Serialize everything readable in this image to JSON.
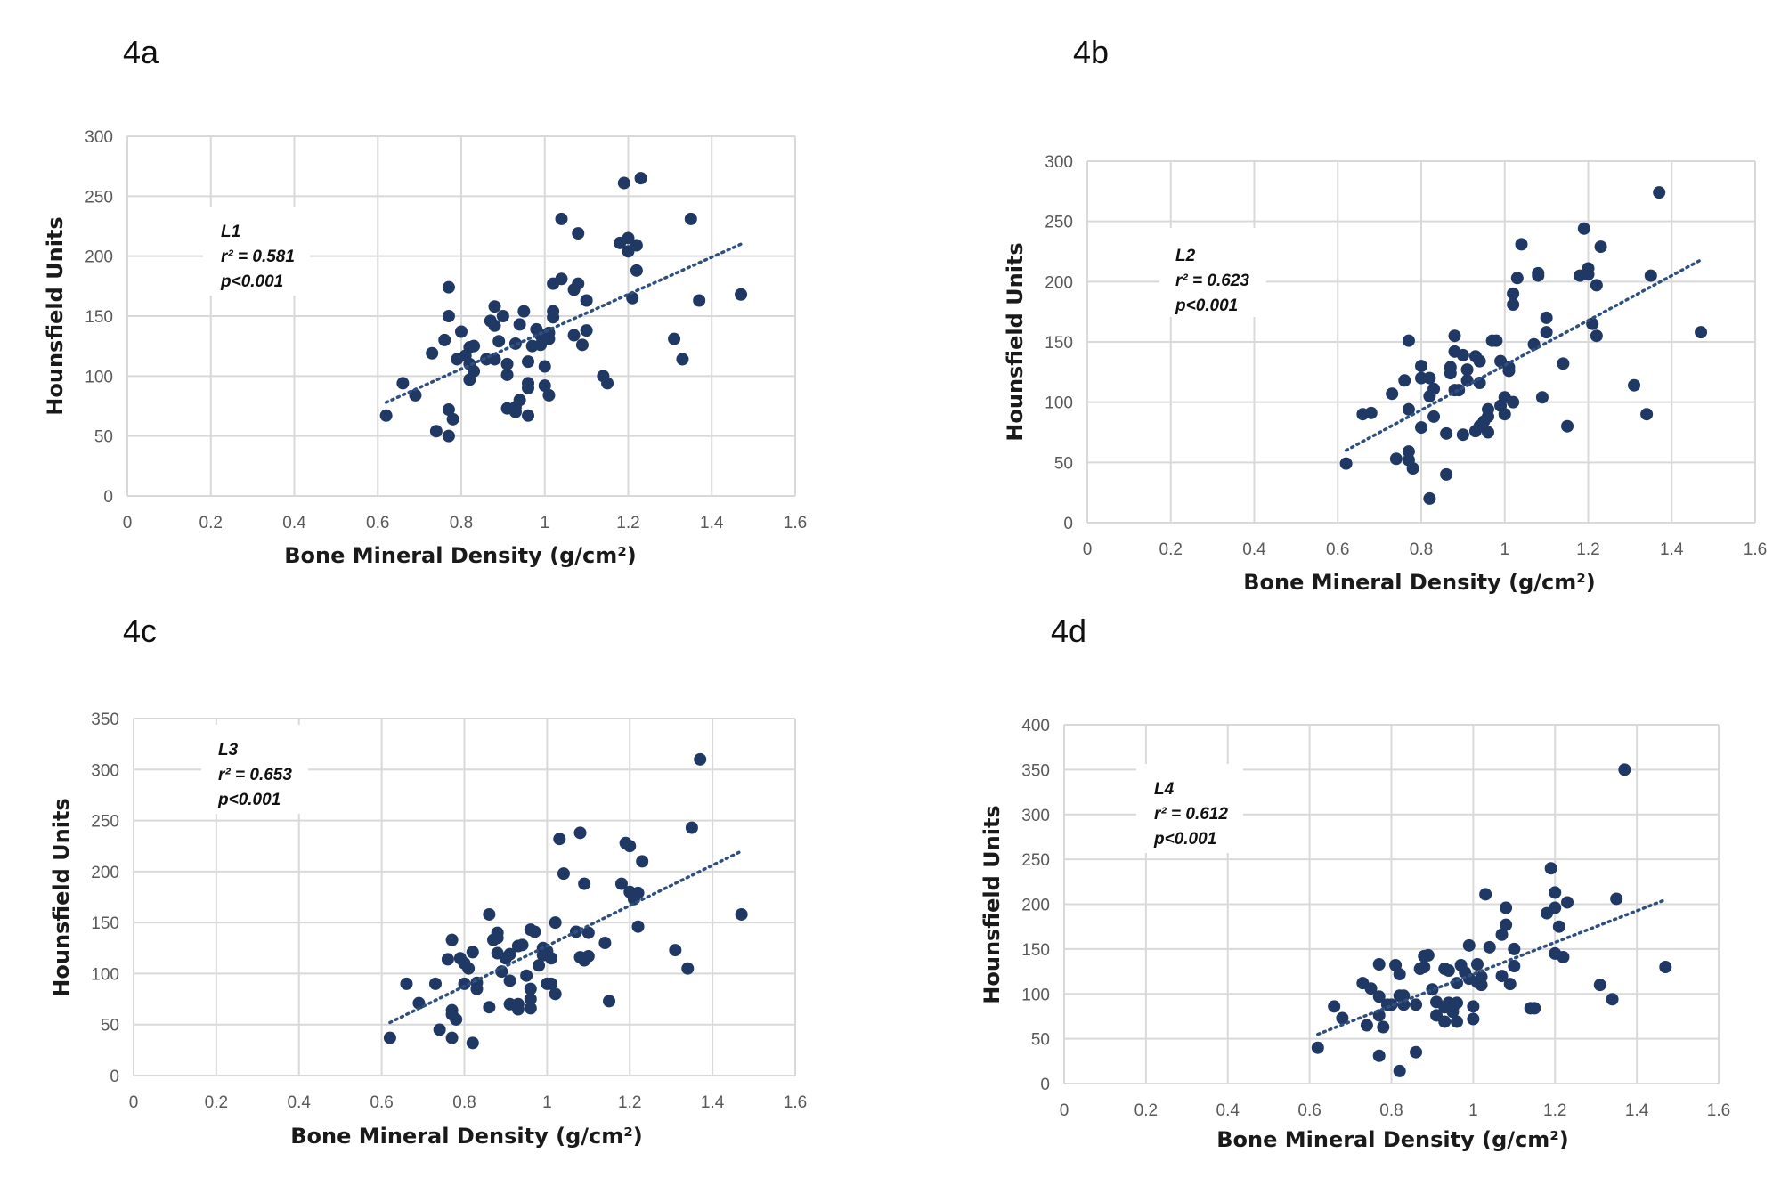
{
  "colors": {
    "marker": "#1f3864",
    "trendline": "#2e4f7f",
    "grid": "#d9d9d9"
  },
  "chart_data": [
    {
      "panel": "4a",
      "type": "scatter",
      "title": "",
      "xlabel": "Bone Mineral Density (g/cm²)",
      "ylabel": "Hounsfield Units",
      "xlim": [
        0,
        1.6
      ],
      "ylim": [
        0,
        300
      ],
      "xticks": [
        "0",
        "0.2",
        "0.4",
        "0.6",
        "0.8",
        "1",
        "1.2",
        "1.4",
        "1.6"
      ],
      "yticks": [
        "0",
        "50",
        "100",
        "150",
        "200",
        "250",
        "300"
      ],
      "grid": true,
      "annotation": {
        "level": "L1",
        "r2": "r² = 0.581",
        "p": "p<0.001"
      },
      "trendline": {
        "x": [
          0.62,
          1.47
        ],
        "y": [
          78,
          210
        ]
      },
      "points": [
        [
          0.62,
          67
        ],
        [
          0.66,
          94
        ],
        [
          0.69,
          84
        ],
        [
          0.73,
          119
        ],
        [
          0.74,
          54
        ],
        [
          0.76,
          130
        ],
        [
          0.77,
          150
        ],
        [
          0.77,
          174
        ],
        [
          0.77,
          72
        ],
        [
          0.77,
          50
        ],
        [
          0.78,
          64
        ],
        [
          0.79,
          114
        ],
        [
          0.8,
          137
        ],
        [
          0.81,
          117
        ],
        [
          0.82,
          124
        ],
        [
          0.82,
          110
        ],
        [
          0.83,
          125
        ],
        [
          0.83,
          104
        ],
        [
          0.82,
          97
        ],
        [
          0.86,
          114
        ],
        [
          0.87,
          146
        ],
        [
          0.88,
          158
        ],
        [
          0.88,
          142
        ],
        [
          0.88,
          114
        ],
        [
          0.89,
          129
        ],
        [
          0.9,
          150
        ],
        [
          0.91,
          110
        ],
        [
          0.91,
          101
        ],
        [
          0.91,
          73
        ],
        [
          0.93,
          74
        ],
        [
          0.93,
          70
        ],
        [
          0.93,
          127
        ],
        [
          0.94,
          80
        ],
        [
          0.94,
          143
        ],
        [
          0.95,
          154
        ],
        [
          0.96,
          112
        ],
        [
          0.96,
          94
        ],
        [
          0.96,
          90
        ],
        [
          0.96,
          67
        ],
        [
          0.97,
          125
        ],
        [
          0.98,
          139
        ],
        [
          0.99,
          126
        ],
        [
          0.99,
          134
        ],
        [
          1.0,
          108
        ],
        [
          1.0,
          92
        ],
        [
          1.01,
          84
        ],
        [
          1.01,
          131
        ],
        [
          1.01,
          136
        ],
        [
          1.02,
          149
        ],
        [
          1.02,
          154
        ],
        [
          1.02,
          177
        ],
        [
          1.04,
          181
        ],
        [
          1.04,
          231
        ],
        [
          1.07,
          134
        ],
        [
          1.07,
          172
        ],
        [
          1.08,
          177
        ],
        [
          1.08,
          219
        ],
        [
          1.09,
          126
        ],
        [
          1.1,
          163
        ],
        [
          1.1,
          138
        ],
        [
          1.14,
          100
        ],
        [
          1.15,
          94
        ],
        [
          1.18,
          211
        ],
        [
          1.19,
          261
        ],
        [
          1.2,
          215
        ],
        [
          1.2,
          204
        ],
        [
          1.21,
          165
        ],
        [
          1.22,
          209
        ],
        [
          1.22,
          188
        ],
        [
          1.23,
          265
        ],
        [
          1.31,
          131
        ],
        [
          1.33,
          114
        ],
        [
          1.35,
          231
        ],
        [
          1.37,
          163
        ],
        [
          1.47,
          168
        ]
      ]
    },
    {
      "panel": "4b",
      "type": "scatter",
      "title": "",
      "xlabel": "Bone Mineral Density (g/cm²)",
      "ylabel": "Hounsfield Units",
      "xlim": [
        0,
        1.6
      ],
      "ylim": [
        0,
        300
      ],
      "xticks": [
        "0",
        "0.2",
        "0.4",
        "0.6",
        "0.8",
        "1",
        "1.2",
        "1.4",
        "1.6"
      ],
      "yticks": [
        "0",
        "50",
        "100",
        "150",
        "200",
        "250",
        "300"
      ],
      "grid": true,
      "annotation": {
        "level": "L2",
        "r2": "r² = 0.623",
        "p": "p<0.001"
      },
      "trendline": {
        "x": [
          0.62,
          1.47
        ],
        "y": [
          60,
          218
        ]
      },
      "points": [
        [
          0.62,
          49
        ],
        [
          0.66,
          90
        ],
        [
          0.68,
          91
        ],
        [
          0.73,
          107
        ],
        [
          0.74,
          53
        ],
        [
          0.76,
          118
        ],
        [
          0.77,
          151
        ],
        [
          0.77,
          94
        ],
        [
          0.77,
          59
        ],
        [
          0.77,
          52
        ],
        [
          0.78,
          45
        ],
        [
          0.8,
          79
        ],
        [
          0.8,
          130
        ],
        [
          0.8,
          120
        ],
        [
          0.82,
          120
        ],
        [
          0.82,
          105
        ],
        [
          0.82,
          20
        ],
        [
          0.83,
          111
        ],
        [
          0.83,
          88
        ],
        [
          0.86,
          74
        ],
        [
          0.86,
          40
        ],
        [
          0.87,
          129
        ],
        [
          0.87,
          124
        ],
        [
          0.88,
          155
        ],
        [
          0.88,
          142
        ],
        [
          0.88,
          110
        ],
        [
          0.89,
          110
        ],
        [
          0.9,
          139
        ],
        [
          0.9,
          73
        ],
        [
          0.91,
          127
        ],
        [
          0.91,
          118
        ],
        [
          0.93,
          138
        ],
        [
          0.93,
          76
        ],
        [
          0.94,
          134
        ],
        [
          0.94,
          116
        ],
        [
          0.94,
          80
        ],
        [
          0.95,
          84
        ],
        [
          0.96,
          94
        ],
        [
          0.96,
          88
        ],
        [
          0.96,
          75
        ],
        [
          0.97,
          151
        ],
        [
          0.98,
          151
        ],
        [
          0.99,
          134
        ],
        [
          0.99,
          97
        ],
        [
          1.0,
          104
        ],
        [
          1.0,
          90
        ],
        [
          1.01,
          129
        ],
        [
          1.01,
          126
        ],
        [
          1.02,
          190
        ],
        [
          1.02,
          181
        ],
        [
          1.02,
          100
        ],
        [
          1.03,
          203
        ],
        [
          1.04,
          231
        ],
        [
          1.07,
          148
        ],
        [
          1.08,
          205
        ],
        [
          1.08,
          207
        ],
        [
          1.09,
          104
        ],
        [
          1.1,
          170
        ],
        [
          1.1,
          158
        ],
        [
          1.14,
          132
        ],
        [
          1.15,
          80
        ],
        [
          1.18,
          205
        ],
        [
          1.19,
          244
        ],
        [
          1.2,
          211
        ],
        [
          1.2,
          206
        ],
        [
          1.21,
          165
        ],
        [
          1.22,
          197
        ],
        [
          1.22,
          155
        ],
        [
          1.23,
          229
        ],
        [
          1.31,
          114
        ],
        [
          1.34,
          90
        ],
        [
          1.35,
          205
        ],
        [
          1.37,
          274
        ],
        [
          1.47,
          158
        ]
      ]
    },
    {
      "panel": "4c",
      "type": "scatter",
      "title": "",
      "xlabel": "Bone Mineral Density (g/cm²)",
      "ylabel": "Hounsfield Units",
      "xlim": [
        0,
        1.6
      ],
      "ylim": [
        0,
        350
      ],
      "xticks": [
        "0",
        "0.2",
        "0.4",
        "0.6",
        "0.8",
        "1",
        "1.2",
        "1.4",
        "1.6"
      ],
      "yticks": [
        "0",
        "50",
        "100",
        "150",
        "200",
        "250",
        "300",
        "350"
      ],
      "grid": true,
      "annotation": {
        "level": "L3",
        "r2": "r² = 0.653",
        "p": "p<0.001"
      },
      "trendline": {
        "x": [
          0.62,
          1.47
        ],
        "y": [
          52,
          220
        ]
      },
      "points": [
        [
          0.62,
          37
        ],
        [
          0.66,
          90
        ],
        [
          0.69,
          71
        ],
        [
          0.73,
          90
        ],
        [
          0.74,
          45
        ],
        [
          0.76,
          114
        ],
        [
          0.77,
          133
        ],
        [
          0.77,
          64
        ],
        [
          0.77,
          60
        ],
        [
          0.77,
          37
        ],
        [
          0.78,
          55
        ],
        [
          0.79,
          115
        ],
        [
          0.8,
          110
        ],
        [
          0.8,
          90
        ],
        [
          0.81,
          105
        ],
        [
          0.82,
          121
        ],
        [
          0.82,
          32
        ],
        [
          0.83,
          91
        ],
        [
          0.83,
          85
        ],
        [
          0.86,
          67
        ],
        [
          0.86,
          158
        ],
        [
          0.87,
          133
        ],
        [
          0.88,
          140
        ],
        [
          0.88,
          135
        ],
        [
          0.88,
          120
        ],
        [
          0.89,
          102
        ],
        [
          0.9,
          115
        ],
        [
          0.91,
          119
        ],
        [
          0.91,
          93
        ],
        [
          0.91,
          70
        ],
        [
          0.93,
          127
        ],
        [
          0.93,
          70
        ],
        [
          0.93,
          65
        ],
        [
          0.94,
          128
        ],
        [
          0.95,
          98
        ],
        [
          0.96,
          85
        ],
        [
          0.96,
          75
        ],
        [
          0.96,
          66
        ],
        [
          0.96,
          143
        ],
        [
          0.97,
          141
        ],
        [
          0.98,
          108
        ],
        [
          0.99,
          118
        ],
        [
          0.99,
          125
        ],
        [
          1.0,
          90
        ],
        [
          1.0,
          122
        ],
        [
          1.01,
          90
        ],
        [
          1.01,
          115
        ],
        [
          1.02,
          150
        ],
        [
          1.02,
          80
        ],
        [
          1.03,
          232
        ],
        [
          1.04,
          198
        ],
        [
          1.07,
          141
        ],
        [
          1.08,
          116
        ],
        [
          1.08,
          238
        ],
        [
          1.09,
          188
        ],
        [
          1.09,
          113
        ],
        [
          1.1,
          117
        ],
        [
          1.1,
          140
        ],
        [
          1.14,
          130
        ],
        [
          1.15,
          73
        ],
        [
          1.18,
          188
        ],
        [
          1.19,
          228
        ],
        [
          1.2,
          225
        ],
        [
          1.2,
          180
        ],
        [
          1.21,
          173
        ],
        [
          1.22,
          179
        ],
        [
          1.22,
          146
        ],
        [
          1.23,
          210
        ],
        [
          1.31,
          123
        ],
        [
          1.34,
          105
        ],
        [
          1.35,
          243
        ],
        [
          1.37,
          310
        ],
        [
          1.47,
          158
        ]
      ]
    },
    {
      "panel": "4d",
      "type": "scatter",
      "title": "",
      "xlabel": "Bone Mineral Density (g/cm²)",
      "ylabel": "Hounsfield Units",
      "xlim": [
        0,
        1.6
      ],
      "ylim": [
        0,
        400
      ],
      "xticks": [
        "0",
        "0.2",
        "0.4",
        "0.6",
        "0.8",
        "1",
        "1.2",
        "1.4",
        "1.6"
      ],
      "yticks": [
        "0",
        "50",
        "100",
        "150",
        "200",
        "250",
        "300",
        "350",
        "400"
      ],
      "grid": true,
      "annotation": {
        "level": "L4",
        "r2": "r² = 0.612",
        "p": "p<0.001"
      },
      "trendline": {
        "x": [
          0.62,
          1.47
        ],
        "y": [
          55,
          205
        ]
      },
      "points": [
        [
          0.62,
          40
        ],
        [
          0.66,
          86
        ],
        [
          0.68,
          73
        ],
        [
          0.73,
          112
        ],
        [
          0.74,
          65
        ],
        [
          0.75,
          106
        ],
        [
          0.77,
          133
        ],
        [
          0.77,
          97
        ],
        [
          0.77,
          76
        ],
        [
          0.77,
          31
        ],
        [
          0.78,
          63
        ],
        [
          0.79,
          88
        ],
        [
          0.8,
          88
        ],
        [
          0.81,
          132
        ],
        [
          0.82,
          98
        ],
        [
          0.82,
          122
        ],
        [
          0.82,
          14
        ],
        [
          0.83,
          98
        ],
        [
          0.83,
          88
        ],
        [
          0.86,
          88
        ],
        [
          0.86,
          35
        ],
        [
          0.87,
          128
        ],
        [
          0.88,
          130
        ],
        [
          0.88,
          142
        ],
        [
          0.89,
          143
        ],
        [
          0.9,
          105
        ],
        [
          0.91,
          76
        ],
        [
          0.91,
          91
        ],
        [
          0.93,
          128
        ],
        [
          0.93,
          69
        ],
        [
          0.93,
          85
        ],
        [
          0.94,
          126
        ],
        [
          0.94,
          90
        ],
        [
          0.95,
          84
        ],
        [
          0.95,
          80
        ],
        [
          0.96,
          90
        ],
        [
          0.96,
          69
        ],
        [
          0.96,
          112
        ],
        [
          0.97,
          132
        ],
        [
          0.98,
          124
        ],
        [
          0.99,
          154
        ],
        [
          0.99,
          117
        ],
        [
          1.0,
          86
        ],
        [
          1.0,
          72
        ],
        [
          1.01,
          133
        ],
        [
          1.01,
          113
        ],
        [
          1.02,
          119
        ],
        [
          1.02,
          110
        ],
        [
          1.03,
          211
        ],
        [
          1.04,
          152
        ],
        [
          1.07,
          120
        ],
        [
          1.07,
          166
        ],
        [
          1.08,
          177
        ],
        [
          1.08,
          196
        ],
        [
          1.09,
          111
        ],
        [
          1.1,
          150
        ],
        [
          1.1,
          131
        ],
        [
          1.14,
          84
        ],
        [
          1.15,
          84
        ],
        [
          1.18,
          190
        ],
        [
          1.19,
          240
        ],
        [
          1.2,
          213
        ],
        [
          1.2,
          196
        ],
        [
          1.2,
          145
        ],
        [
          1.21,
          175
        ],
        [
          1.22,
          141
        ],
        [
          1.23,
          202
        ],
        [
          1.31,
          110
        ],
        [
          1.34,
          94
        ],
        [
          1.35,
          206
        ],
        [
          1.37,
          350
        ],
        [
          1.47,
          130
        ]
      ]
    }
  ]
}
